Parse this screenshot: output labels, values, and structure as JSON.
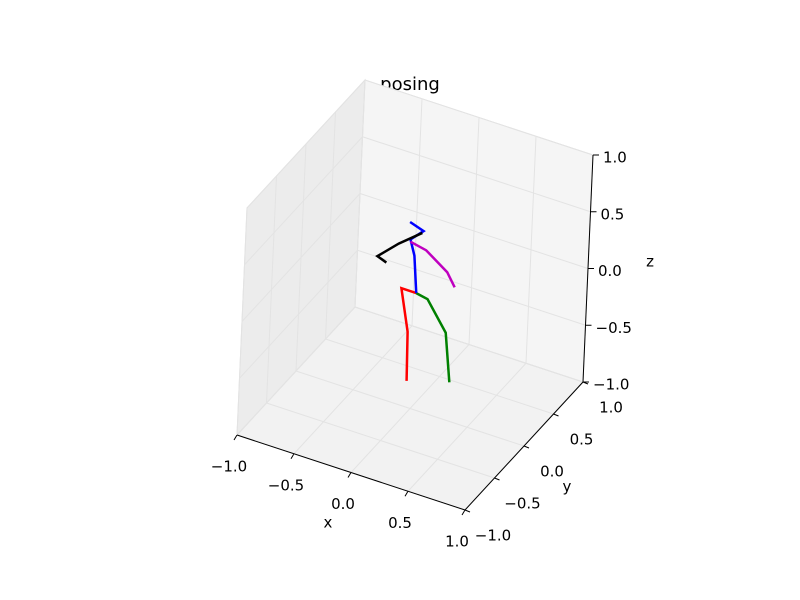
{
  "chart_data": {
    "type": "line3d",
    "title": "posing",
    "xlabel": "x",
    "ylabel": "y",
    "zlabel": "z",
    "xlim": [
      -1,
      1
    ],
    "ylim": [
      -1,
      1
    ],
    "zlim": [
      -1,
      1
    ],
    "xticks": [
      {
        "value": -1,
        "label": "−1.0"
      },
      {
        "value": -0.5,
        "label": "−0.5"
      },
      {
        "value": 0,
        "label": "0.0"
      },
      {
        "value": 0.5,
        "label": "0.5"
      },
      {
        "value": 1,
        "label": "1.0"
      }
    ],
    "yticks": [
      {
        "value": -1,
        "label": "−1.0"
      },
      {
        "value": -0.5,
        "label": "−0.5"
      },
      {
        "value": 0,
        "label": "0.0"
      },
      {
        "value": 0.5,
        "label": "0.5"
      },
      {
        "value": 1,
        "label": "1.0"
      }
    ],
    "zticks": [
      {
        "value": -1,
        "label": "−1.0"
      },
      {
        "value": -0.5,
        "label": "−0.5"
      },
      {
        "value": 0,
        "label": "0.0"
      },
      {
        "value": 0.5,
        "label": "0.5"
      },
      {
        "value": 1,
        "label": "1.0"
      }
    ],
    "grid": true,
    "series": [
      {
        "color": "#ff0000",
        "x": [
          -0.04,
          -0.05,
          -0.12,
          0.01
        ],
        "y": [
          0,
          0,
          0,
          0
        ],
        "z": [
          -0.77,
          -0.34,
          0.02,
          0.02
        ]
      },
      {
        "color": "#008000",
        "x": [
          0.33,
          0.28,
          0.11,
          0.01
        ],
        "y": [
          0,
          0,
          0,
          0
        ],
        "z": [
          -0.66,
          -0.24,
          0.0,
          0.02
        ]
      },
      {
        "color": "#0000ff",
        "x": [
          0.01,
          -0.02,
          -0.06,
          0.05,
          -0.07
        ],
        "y": [
          0,
          0,
          0,
          0,
          0
        ],
        "z": [
          0.02,
          0.34,
          0.47,
          0.58,
          0.62
        ]
      },
      {
        "color": "#000000",
        "x": [
          0.04,
          -0.16,
          -0.34,
          -0.26
        ],
        "y": [
          0,
          0,
          0,
          0
        ],
        "z": [
          0.56,
          0.4,
          0.23,
          0.2
        ]
      },
      {
        "color": "#bf00bf",
        "x": [
          -0.06,
          0.08,
          0.27,
          0.34
        ],
        "y": [
          0,
          0,
          0,
          0
        ],
        "z": [
          0.45,
          0.42,
          0.29,
          0.18
        ]
      }
    ]
  }
}
